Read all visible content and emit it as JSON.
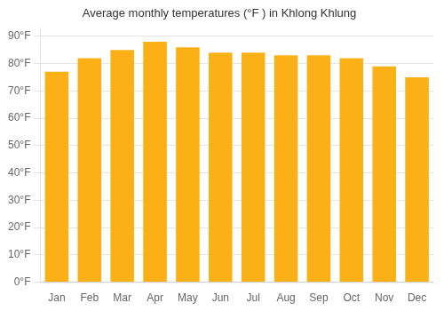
{
  "chart_data": {
    "type": "bar",
    "title": "Average monthly temperatures (°F ) in Khlong Khlung",
    "categories": [
      "Jan",
      "Feb",
      "Mar",
      "Apr",
      "May",
      "Jun",
      "Jul",
      "Aug",
      "Sep",
      "Oct",
      "Nov",
      "Dec"
    ],
    "values": [
      77,
      82,
      85,
      88,
      86,
      84,
      84,
      83,
      83,
      82,
      79,
      75
    ],
    "color": "#FBB116",
    "ylim": [
      0,
      93
    ],
    "yticks": [
      {
        "value": 0,
        "label": "0°F"
      },
      {
        "value": 10,
        "label": "10°F"
      },
      {
        "value": 20,
        "label": "20°F"
      },
      {
        "value": 30,
        "label": "30°F"
      },
      {
        "value": 40,
        "label": "40°F"
      },
      {
        "value": 50,
        "label": "50°F"
      },
      {
        "value": 60,
        "label": "60°F"
      },
      {
        "value": 70,
        "label": "70°F"
      },
      {
        "value": 80,
        "label": "80°F"
      },
      {
        "value": 90,
        "label": "90°F"
      }
    ],
    "grid": true
  }
}
